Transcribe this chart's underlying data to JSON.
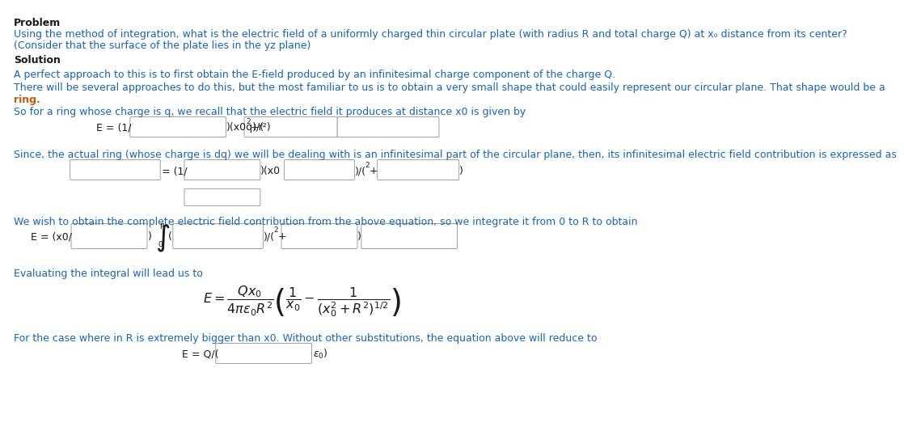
{
  "bg_color": "#ffffff",
  "col_dark": "#1a1a1a",
  "col_blue": "#1565c0",
  "col_orange": "#c55a11",
  "title1": "Problem",
  "prob_line1": "Using the method of integration, what is the electric field of a uniformly charged thin circular plate (with radius R and total charge Q) at x₀ distance from its center?",
  "prob_line2": "(Consider that the surface of the plate lies in the yz plane)",
  "title2": "Solution",
  "sol_line1": "A perfect approach to this is to first obtain the E-field produced by an infinitesimal charge component of the charge Q.",
  "sol_line2a": "There will be several approaches to do this, but the most familiar to us is to obtain a very small shape that could easily represent our circular plane. That shape would be a",
  "sol_line2b": "ring.",
  "sol_line3": "So for a ring whose charge is q, we recall that the electric field it produces at distance x0 is given by",
  "sol_line4": "Since, the actual ring (whose charge is dq) we will be dealing with is an infinitesimal part of the circular plane, then, its infinitesimal electric field contribution is expressed as",
  "sol_line5": "We wish to obtain the complete electric field contribution from the above equation, so we integrate it from 0 to R to obtain",
  "sol_line6": "Evaluating the integral will lead us to",
  "sol_line7": "For the case where in R is extremely bigger than x0. Without other substitutions, the equation above will reduce to"
}
